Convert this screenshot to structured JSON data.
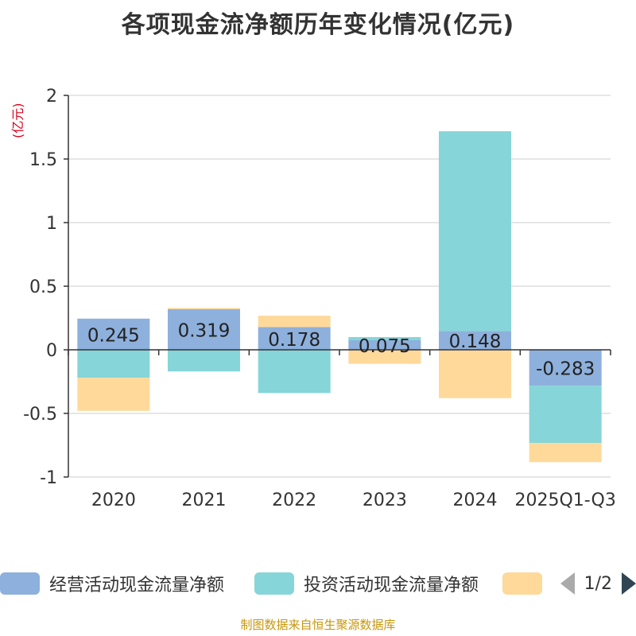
{
  "title": "各项现金流净额历年变化情况(亿元)",
  "unit_label": "(亿元)",
  "source": "制图数据来自恒生聚源数据库",
  "legend": {
    "items": [
      {
        "label": "经营活动现金流量净额",
        "color": "#8eb0dc"
      },
      {
        "label": "投资活动现金流量净额",
        "color": "#86d5d8"
      },
      {
        "label": "",
        "color": "#fed99a"
      }
    ],
    "page_text": "1/2"
  },
  "chart_data": {
    "type": "bar",
    "stacked": true,
    "title": "各项现金流净额历年变化情况(亿元)",
    "ylabel": "(亿元)",
    "ylim": [
      -1,
      2
    ],
    "yticks": [
      -1,
      -0.5,
      0,
      0.5,
      1,
      1.5,
      2
    ],
    "ytick_labels": [
      "-1",
      "-0.5",
      "0",
      "0.5",
      "1",
      "1.5",
      "2"
    ],
    "grid": true,
    "categories": [
      "2020",
      "2021",
      "2022",
      "2023",
      "2024",
      "2025Q1-Q3"
    ],
    "series": [
      {
        "name": "经营活动现金流量净额",
        "color": "#8eb0dc",
        "values": [
          0.245,
          0.319,
          0.178,
          0.075,
          0.148,
          -0.283
        ]
      },
      {
        "name": "投资活动现金流量净额",
        "color": "#86d5d8",
        "values": [
          -0.22,
          -0.17,
          -0.34,
          0.025,
          1.57,
          -0.45
        ]
      },
      {
        "name": "",
        "color": "#fed99a",
        "values": [
          -0.26,
          0.01,
          0.09,
          -0.11,
          -0.38,
          -0.15
        ]
      }
    ],
    "data_labels": [
      "0.245",
      "0.319",
      "0.178",
      "0.075",
      "0.148",
      "-0.283"
    ]
  }
}
